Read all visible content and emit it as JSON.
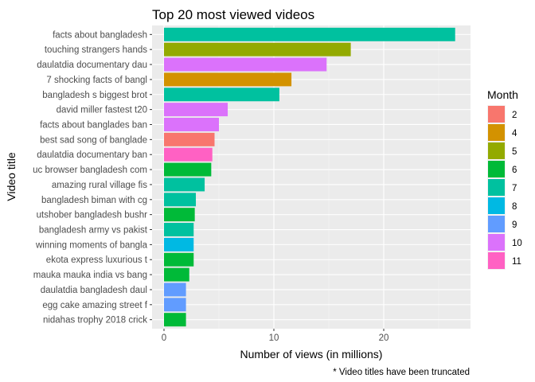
{
  "chart_data": {
    "type": "bar",
    "orientation": "horizontal",
    "title": "Top 20 most viewed videos",
    "xlabel": "Number of views (in millions)",
    "ylabel": "Video title",
    "caption": "* Video titles have been truncated",
    "xlim": [
      0,
      28
    ],
    "x_ticks": [
      0,
      10,
      20
    ],
    "grid": true,
    "legend_placement": "right",
    "legend": {
      "title": "Month",
      "entries": [
        {
          "label": "2",
          "color": "#F8766D"
        },
        {
          "label": "4",
          "color": "#D39200"
        },
        {
          "label": "5",
          "color": "#93AA00"
        },
        {
          "label": "6",
          "color": "#00BA38"
        },
        {
          "label": "7",
          "color": "#00C19F"
        },
        {
          "label": "8",
          "color": "#00B9E3"
        },
        {
          "label": "9",
          "color": "#619CFF"
        },
        {
          "label": "10",
          "color": "#DB72FB"
        },
        {
          "label": "11",
          "color": "#FF61C3"
        }
      ]
    },
    "bars": [
      {
        "category": "facts about bangladesh",
        "value": 26.5,
        "month": "7"
      },
      {
        "category": "touching strangers hands",
        "value": 17.0,
        "month": "5"
      },
      {
        "category": "daulatdia documentary dau",
        "value": 14.8,
        "month": "10"
      },
      {
        "category": "7 shocking facts of bangl",
        "value": 11.6,
        "month": "4"
      },
      {
        "category": "bangladesh s biggest brot",
        "value": 10.5,
        "month": "7"
      },
      {
        "category": "david miller fastest t20",
        "value": 5.8,
        "month": "10"
      },
      {
        "category": "facts about banglades ban",
        "value": 5.0,
        "month": "10"
      },
      {
        "category": "best sad song of banglade",
        "value": 4.6,
        "month": "2"
      },
      {
        "category": "daulatdia documentary ban",
        "value": 4.4,
        "month": "11"
      },
      {
        "category": "uc browser bangladesh com",
        "value": 4.3,
        "month": "6"
      },
      {
        "category": "amazing rural village fis",
        "value": 3.7,
        "month": "7"
      },
      {
        "category": "bangladesh biman with cg",
        "value": 2.9,
        "month": "7"
      },
      {
        "category": "utshober bangladesh bushr",
        "value": 2.8,
        "month": "6"
      },
      {
        "category": "bangladesh army vs pakist",
        "value": 2.7,
        "month": "7"
      },
      {
        "category": "winning moments of bangla",
        "value": 2.7,
        "month": "8"
      },
      {
        "category": "ekota express luxurious t",
        "value": 2.7,
        "month": "6"
      },
      {
        "category": "mauka mauka india vs bang",
        "value": 2.3,
        "month": "6"
      },
      {
        "category": "daulatdia bangladesh daul",
        "value": 2.0,
        "month": "9"
      },
      {
        "category": "egg cake amazing street f",
        "value": 2.0,
        "month": "9"
      },
      {
        "category": "nidahas trophy 2018 crick",
        "value": 2.0,
        "month": "6"
      }
    ]
  }
}
